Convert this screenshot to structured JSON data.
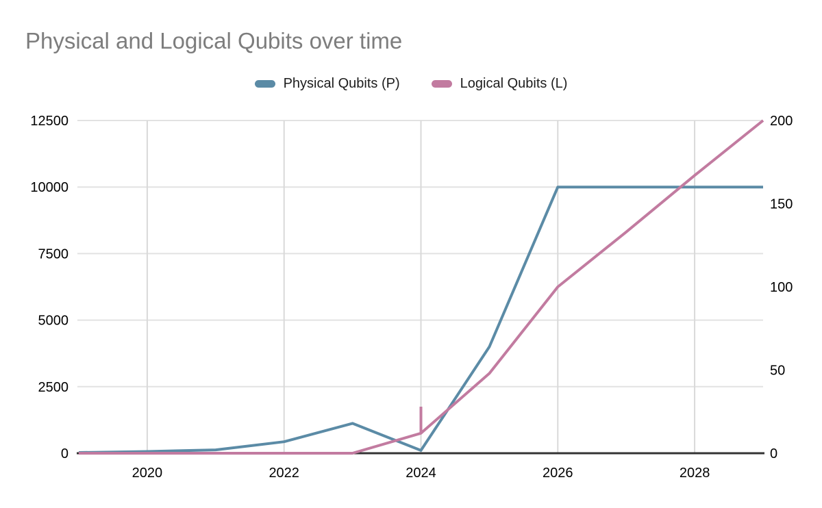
{
  "title": {
    "text": "Physical and Logical Qubits over time"
  },
  "colors": {
    "background": "#ffffff",
    "title": "#7d7d7d",
    "physical_series": "#5b8ba6",
    "logical_series": "#c27ba0",
    "axis_line": "#333333",
    "h_gridline": "#e2e2e2",
    "v_gridline": "#d9d9d9",
    "tick_label": "#000000",
    "legend_label": "#1c1c1c"
  },
  "chart_data": {
    "type": "line",
    "title": "Physical and Logical Qubits over time",
    "xlabel": "",
    "ylabel_left": "",
    "ylabel_right": "",
    "grid": true,
    "legend_position": "top",
    "x": [
      2019,
      2020,
      2021,
      2022,
      2023,
      2024,
      2025,
      2026,
      2027,
      2028,
      2029
    ],
    "series": [
      {
        "name": "Physical Qubits (P)",
        "axis": "left",
        "color": "#5b8ba6",
        "values": [
          27,
          65,
          127,
          433,
          1121,
          105,
          4000,
          10000,
          10000,
          10000,
          10000
        ]
      },
      {
        "name": "Logical Qubits (L)",
        "axis": "right",
        "color": "#c27ba0",
        "values": [
          0,
          0,
          0,
          0,
          0,
          12,
          48,
          100,
          133,
          167,
          200
        ],
        "anomaly_spike": {
          "year": 2024,
          "from": 12,
          "to": 28
        }
      }
    ],
    "axes": {
      "x": {
        "range": [
          2019,
          2029
        ],
        "tick_years": [
          2020,
          2022,
          2024,
          2026,
          2028
        ],
        "tick_labels": [
          "2020",
          "2022",
          "2024",
          "2026",
          "2028"
        ]
      },
      "y_left": {
        "range": [
          0,
          12500
        ],
        "ticks": [
          0,
          2500,
          5000,
          7500,
          10000,
          12500
        ],
        "tick_labels": [
          "0",
          "2500",
          "5000",
          "7500",
          "10000",
          "12500"
        ]
      },
      "y_right": {
        "range": [
          0,
          200
        ],
        "ticks": [
          0,
          50,
          100,
          150,
          200
        ],
        "tick_labels": [
          "0",
          "50",
          "100",
          "150",
          "200"
        ]
      }
    }
  }
}
